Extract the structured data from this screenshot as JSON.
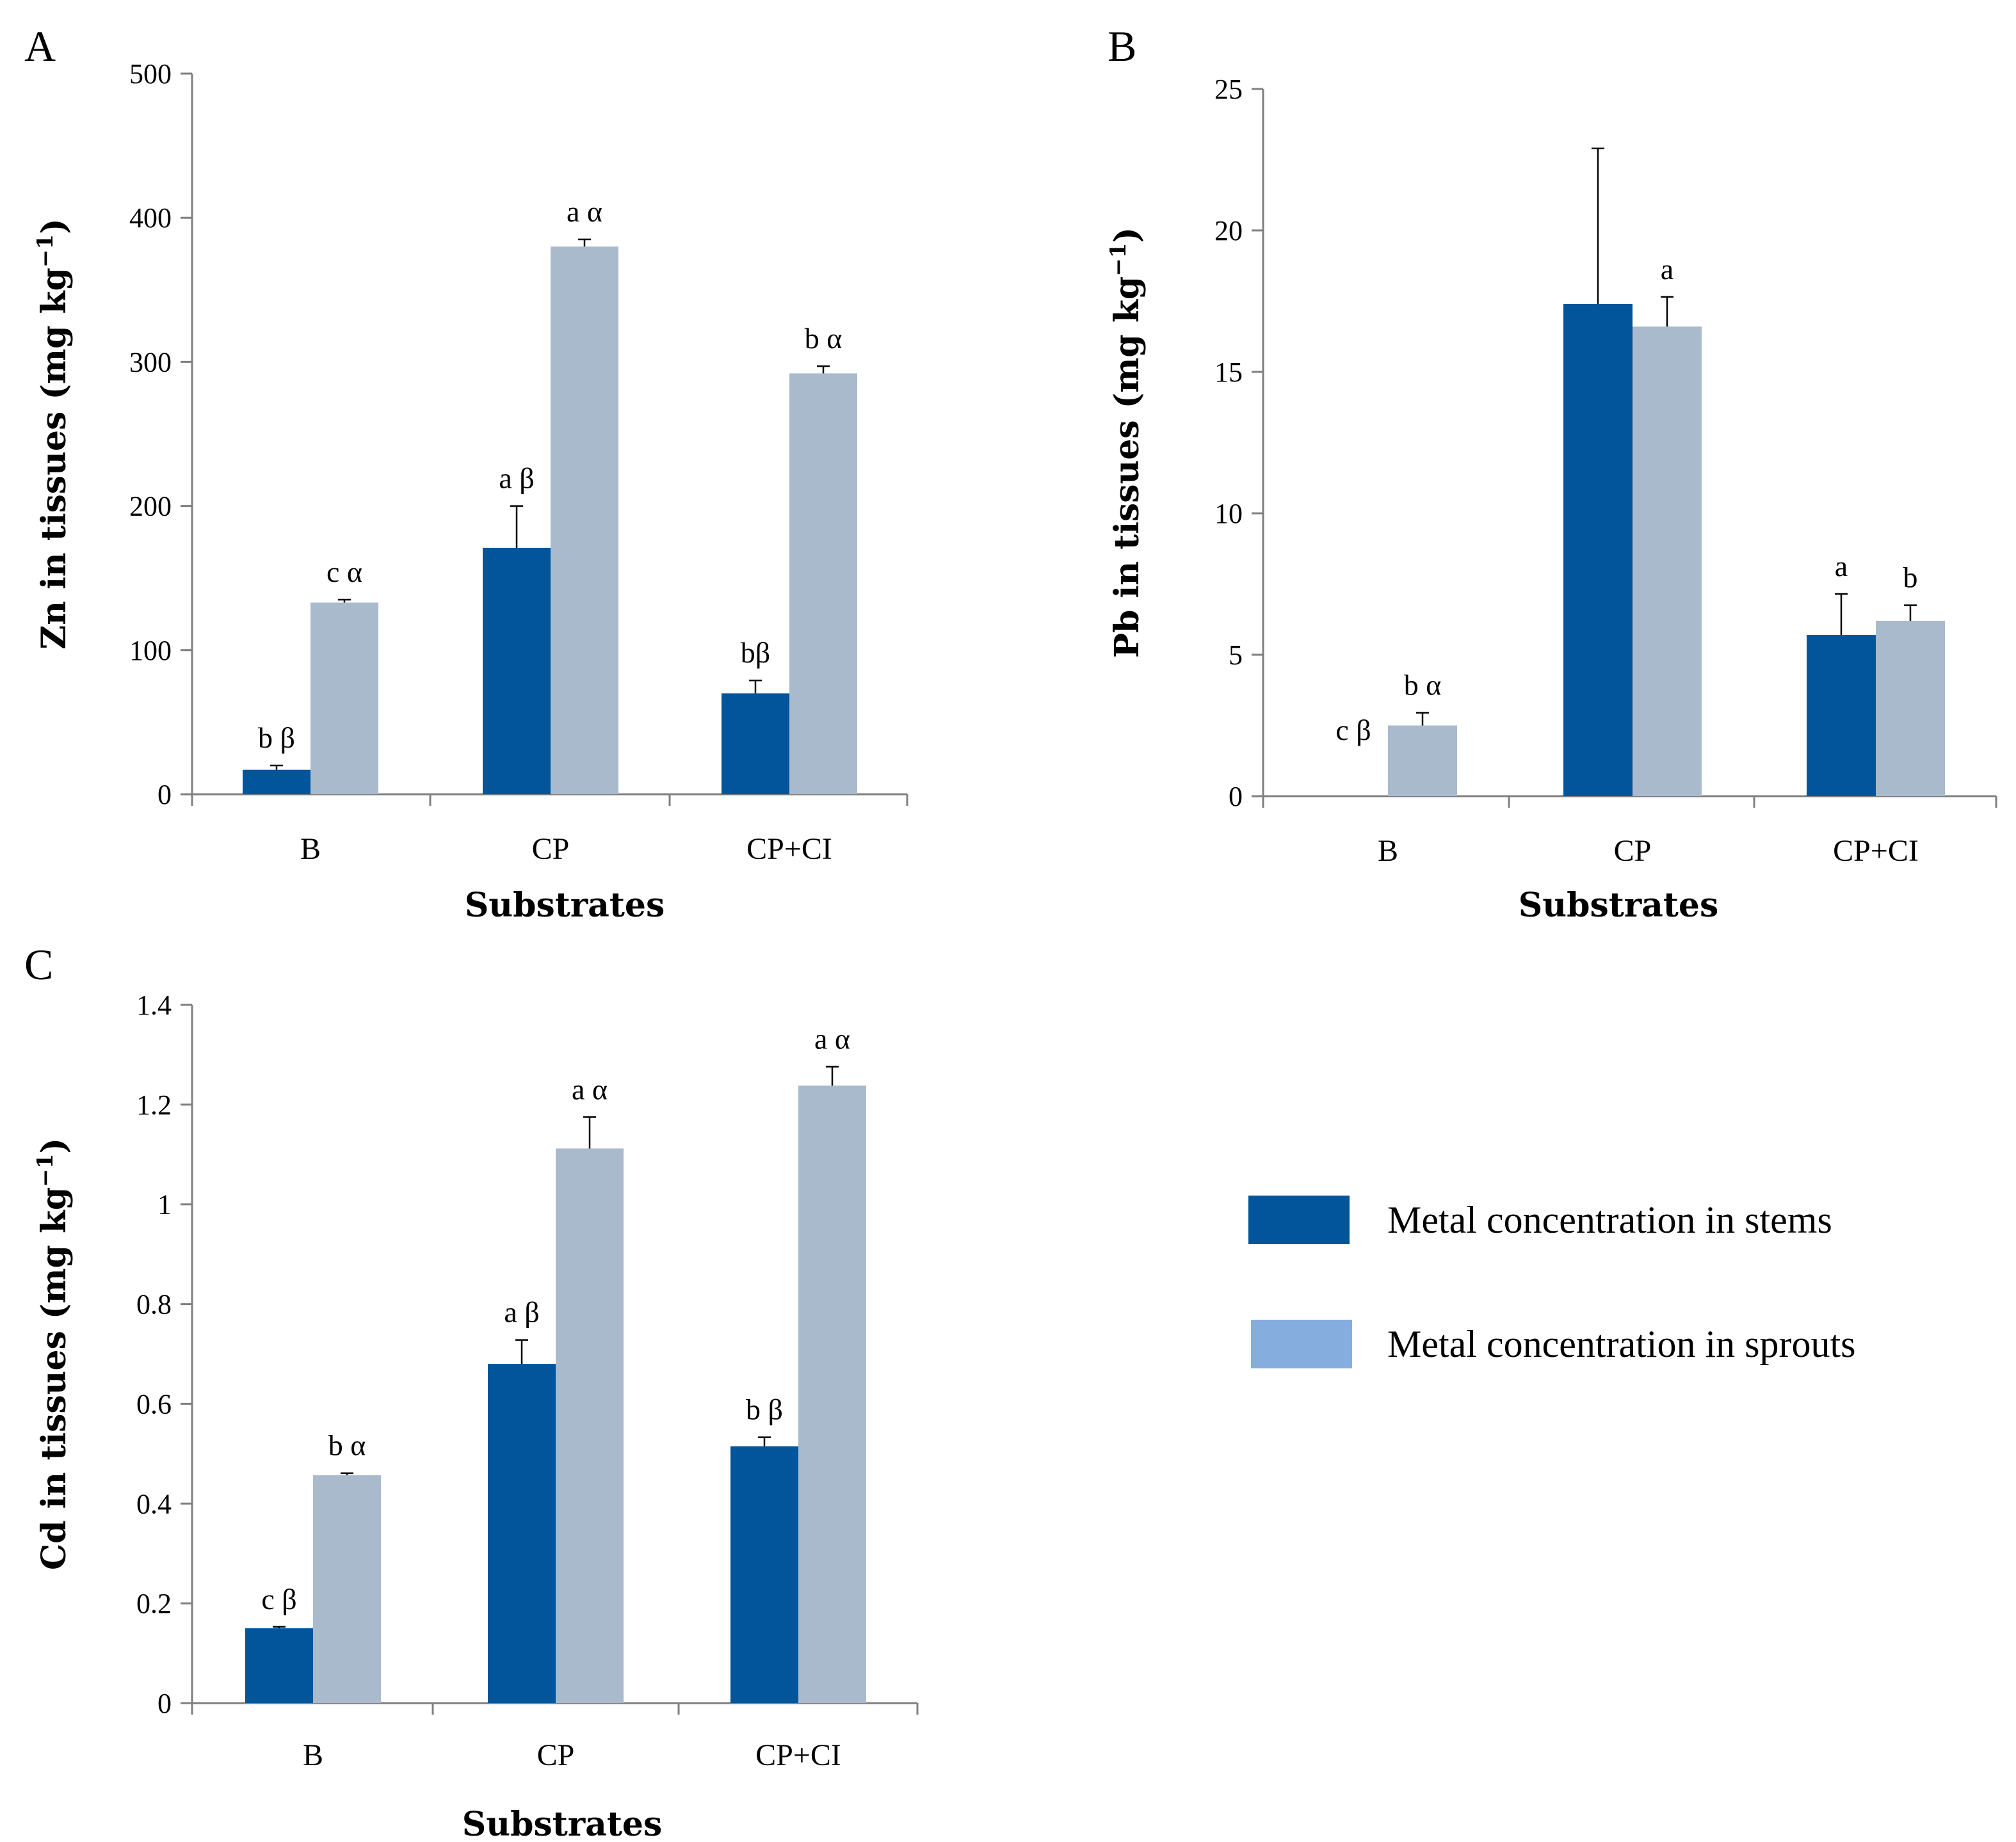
{
  "colors": {
    "stems": "#02559b",
    "sprouts_bar": "#a9bacd",
    "sprouts_legend": "#85aede",
    "axis": "#7f7f7f"
  },
  "legend": {
    "items": [
      {
        "label": "Metal concentration in stems",
        "color_key": "stems"
      },
      {
        "label": "Metal concentration in sprouts",
        "color_key": "sprouts_legend"
      }
    ]
  },
  "chart_data": [
    {
      "panel": "A",
      "type": "bar",
      "categories": [
        "B",
        "CP",
        "CP+CI"
      ],
      "xlabel": "Substrates",
      "ylabel": "Zn in tissues (mg kg",
      "ylabel_sup": "−1",
      "ylabel_close": ")",
      "ylim": [
        0,
        500
      ],
      "yticks": [
        0,
        100,
        200,
        300,
        400,
        500
      ],
      "ytick_labels": [
        "0",
        "100",
        "200",
        "300",
        "400",
        "500"
      ],
      "series": [
        {
          "name": "Metal concentration in stems",
          "values": [
            17,
            171,
            70
          ],
          "errors": [
            3,
            29,
            9
          ],
          "letters": [
            "b β",
            "a β",
            "bβ"
          ]
        },
        {
          "name": "Metal concentration in sprouts",
          "values": [
            133,
            380,
            292
          ],
          "errors": [
            2,
            5,
            5
          ],
          "letters": [
            "c α",
            "a α",
            "b α"
          ]
        }
      ]
    },
    {
      "panel": "B",
      "type": "bar",
      "categories": [
        "B",
        "CP",
        "CP+CI"
      ],
      "xlabel": "Substrates",
      "ylabel": "Pb in tissues (mg kg",
      "ylabel_sup": "−1",
      "ylabel_close": ")",
      "ylim": [
        0,
        25
      ],
      "yticks": [
        0,
        5,
        10,
        15,
        20,
        25
      ],
      "ytick_labels": [
        "0",
        "5",
        "10",
        "15",
        "20",
        "25"
      ],
      "series": [
        {
          "name": "Metal concentration in stems",
          "values": [
            0,
            17.4,
            5.7
          ],
          "errors": [
            0,
            5.5,
            1.45
          ],
          "letters": [
            "c β",
            "",
            "a"
          ]
        },
        {
          "name": "Metal concentration in sprouts",
          "values": [
            2.5,
            16.6,
            6.2
          ],
          "errors": [
            0.45,
            1.05,
            0.55
          ],
          "letters": [
            "b α",
            "a",
            "b"
          ]
        }
      ]
    },
    {
      "panel": "C",
      "type": "bar",
      "categories": [
        "B",
        "CP",
        "CP+CI"
      ],
      "xlabel": "Substrates",
      "ylabel": "Cd in tissues (mg kg",
      "ylabel_sup": "−1",
      "ylabel_close": ")",
      "ylim": [
        0,
        1.4
      ],
      "yticks": [
        0,
        0.2,
        0.4,
        0.6,
        0.8,
        1.0,
        1.2,
        1.4
      ],
      "ytick_labels": [
        "0",
        "0.2",
        "0.4",
        "0.6",
        "0.8",
        "1",
        "1.2",
        "1.4"
      ],
      "series": [
        {
          "name": "Metal concentration in stems",
          "values": [
            0.15,
            0.68,
            0.515
          ],
          "errors": [
            0.003,
            0.048,
            0.018
          ],
          "letters": [
            "c β",
            "a β",
            "b β"
          ]
        },
        {
          "name": "Metal concentration in sprouts",
          "values": [
            0.457,
            1.112,
            1.238
          ],
          "errors": [
            0.004,
            0.063,
            0.038
          ],
          "letters": [
            "b α",
            "a α",
            "a α"
          ]
        }
      ]
    }
  ]
}
